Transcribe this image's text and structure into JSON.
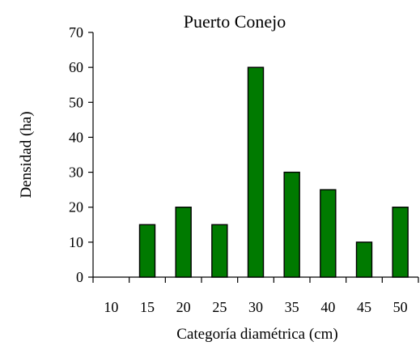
{
  "chart_data": {
    "type": "bar",
    "title": "Puerto Conejo",
    "xlabel": "Categoría diamétrica (cm)",
    "ylabel": "Densidad (ha)",
    "categories": [
      "10",
      "15",
      "20",
      "25",
      "30",
      "35",
      "40",
      "45",
      "50"
    ],
    "values": [
      0,
      15,
      20,
      15,
      60,
      30,
      25,
      10,
      20
    ],
    "ylim": [
      0,
      70
    ],
    "yticks": [
      0,
      10,
      20,
      30,
      40,
      50,
      60,
      70
    ],
    "grid": false,
    "legend": "none",
    "colors": {
      "bar": "#007a00",
      "edge": "#000000"
    }
  }
}
